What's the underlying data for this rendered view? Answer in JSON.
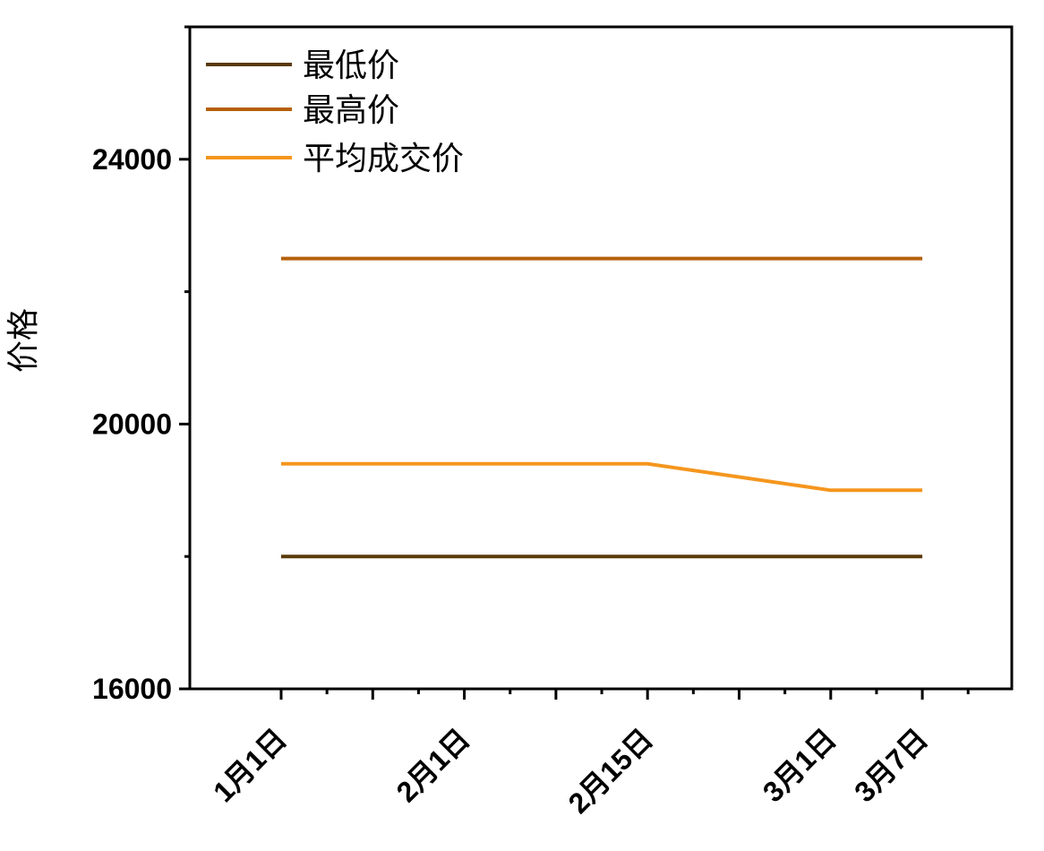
{
  "chart_data": {
    "type": "line",
    "title": "",
    "xlabel": "",
    "ylabel": "价格",
    "ylim": [
      16000,
      26000
    ],
    "y_ticks": [
      16000,
      20000,
      24000
    ],
    "categories": [
      "1月1日",
      "",
      "2月1日",
      "",
      "2月15日",
      "",
      "3月1日",
      "3月7日"
    ],
    "x_tick_labels": [
      "1月1日",
      "2月1日",
      "2月15日",
      "3月1日",
      "3月7日"
    ],
    "series": [
      {
        "name": "最低价",
        "color": "#5a3a0a",
        "values": [
          18000,
          18000,
          18000,
          18000,
          18000,
          18000,
          18000,
          18000
        ]
      },
      {
        "name": "最高价",
        "color": "#b5600b",
        "values": [
          22500,
          22500,
          22500,
          22500,
          22500,
          22500,
          22500,
          22500
        ]
      },
      {
        "name": "平均成交价",
        "color": "#f5961e",
        "values": [
          19400,
          19400,
          19400,
          19400,
          19400,
          19200,
          19000,
          19000
        ]
      }
    ],
    "grid": false,
    "legend_position": "top-left"
  }
}
